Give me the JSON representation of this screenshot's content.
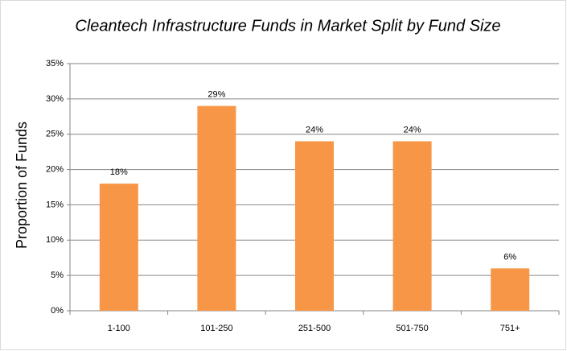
{
  "chart_data": {
    "type": "bar",
    "title": "Cleantech Infrastructure Funds in Market Split by Fund Size",
    "y_label": "Proportion of Funds",
    "categories": [
      "1-100",
      "101-250",
      "251-500",
      "501-750",
      "751+"
    ],
    "values": [
      18,
      29,
      24,
      24,
      6
    ],
    "value_labels": [
      "18%",
      "29%",
      "24%",
      "24%",
      "6%"
    ],
    "color": "#f79646",
    "ylim": [
      0,
      35
    ],
    "yticks": [
      {
        "value": 0,
        "label": "0%"
      },
      {
        "value": 5,
        "label": "5%"
      },
      {
        "value": 10,
        "label": "10%"
      },
      {
        "value": 15,
        "label": "15%"
      },
      {
        "value": 20,
        "label": "20%"
      },
      {
        "value": 25,
        "label": "25%"
      },
      {
        "value": 30,
        "label": "30%"
      },
      {
        "value": 35,
        "label": "35%"
      }
    ],
    "grid": true
  }
}
